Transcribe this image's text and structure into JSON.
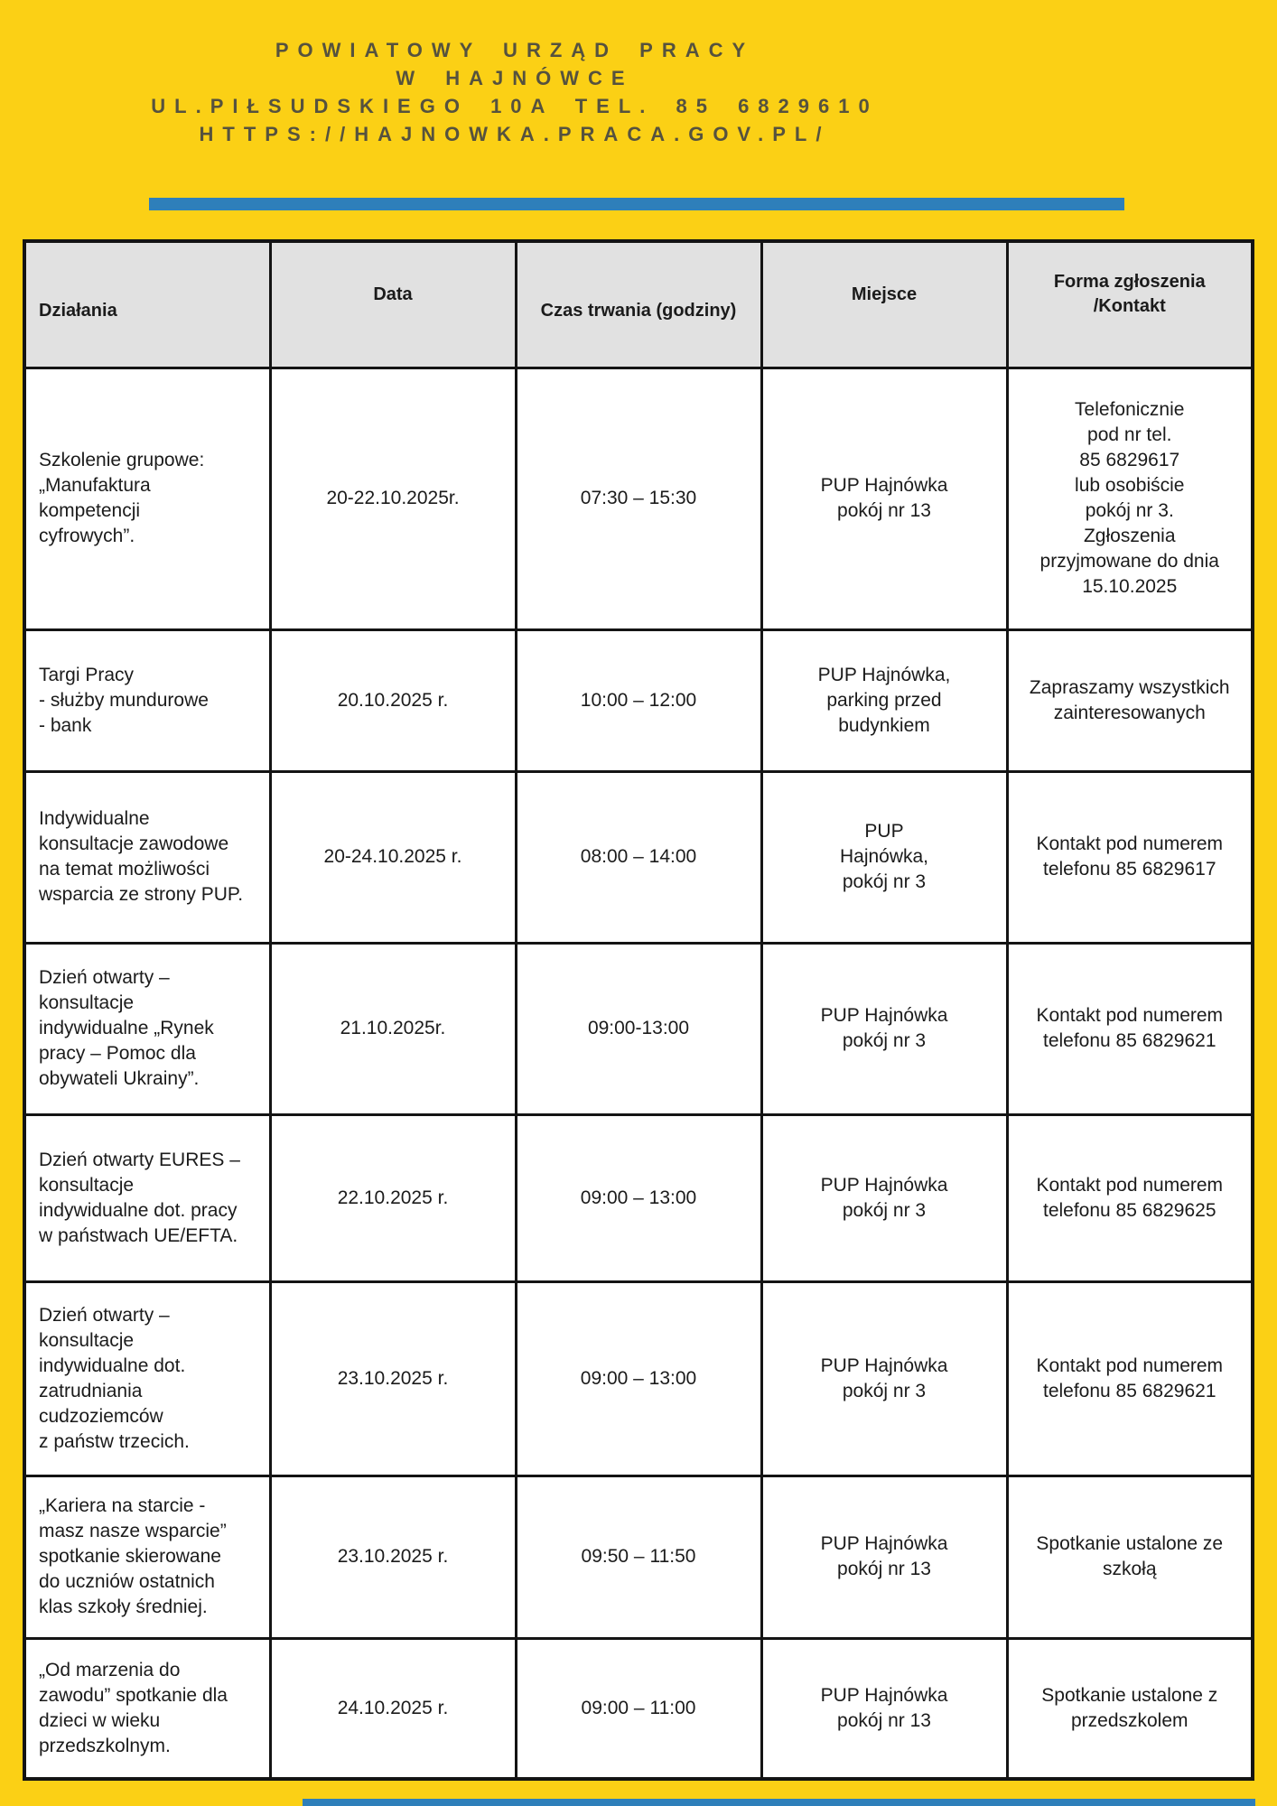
{
  "page": {
    "background_color": "#FBD015",
    "accent_bar_color": "#2E7FBA",
    "header_text_color": "#56523E"
  },
  "header": {
    "line1": "POWIATOWY URZĄD PRACY",
    "line2": "W HAJNÓWCE",
    "line3": "UL.PIŁSUDSKIEGO 10A TEL. 85 6829610",
    "line4": "HTTPS://HAJNOWKA.PRACA.GOV.PL/"
  },
  "table": {
    "columns": [
      "Działania",
      "Data",
      "Czas trwania (godziny)",
      "Miejsce",
      "Forma zgłoszenia\n/Kontakt"
    ],
    "rows": [
      {
        "activity": "Szkolenie grupowe:\n„Manufaktura\nkompetencji\ncyfrowych”.",
        "date": "20-22.10.2025r.",
        "time": "07:30 – 15:30",
        "place": "PUP Hajnówka\npokój nr 13",
        "contact": "Telefonicznie\npod nr tel.\n85 6829617\nlub osobiście\npokój nr 3.\nZgłoszenia\nprzyjmowane do dnia\n15.10.2025"
      },
      {
        "activity": "Targi Pracy\n- służby mundurowe\n- bank",
        "date": "20.10.2025 r.",
        "time": "10:00 – 12:00",
        "place": "PUP Hajnówka,\nparking przed\nbudynkiem",
        "contact": "Zapraszamy wszystkich\nzainteresowanych"
      },
      {
        "activity": "Indywidualne\nkonsultacje zawodowe\nna temat możliwości\nwsparcia ze strony PUP.",
        "date": "20-24.10.2025 r.",
        "time": "08:00 – 14:00",
        "place": "PUP\nHajnówka,\npokój nr 3",
        "contact": "Kontakt pod numerem\ntelefonu 85 6829617"
      },
      {
        "activity": "Dzień otwarty –\nkonsultacje\nindywidualne „Rynek\npracy – Pomoc dla\nobywateli Ukrainy”.",
        "date": "21.10.2025r.",
        "time": "09:00-13:00",
        "place": "PUP Hajnówka\npokój nr 3",
        "contact": "Kontakt pod numerem\ntelefonu 85 6829621"
      },
      {
        "activity": "Dzień otwarty EURES –\nkonsultacje\nindywidualne dot. pracy\nw państwach UE/EFTA.",
        "date": "22.10.2025 r.",
        "time": "09:00 – 13:00",
        "place": "PUP Hajnówka\npokój nr 3",
        "contact": "Kontakt pod numerem\ntelefonu 85 6829625"
      },
      {
        "activity": "Dzień otwarty –\nkonsultacje\nindywidualne dot.\nzatrudniania\ncudzoziemców\nz państw trzecich.",
        "date": "23.10.2025 r.",
        "time": "09:00 – 13:00",
        "place": "PUP Hajnówka\npokój nr 3",
        "contact": "Kontakt pod numerem\ntelefonu 85 6829621"
      },
      {
        "activity": "„Kariera na starcie -\nmasz nasze wsparcie”\nspotkanie skierowane\ndo uczniów ostatnich\nklas szkoły średniej.",
        "date": "23.10.2025 r.",
        "time": "09:50 – 11:50",
        "place": "PUP Hajnówka\npokój nr 13",
        "contact": "Spotkanie ustalone ze\nszkołą"
      },
      {
        "activity": "„Od marzenia do\nzawodu” spotkanie dla\ndzieci w wieku\nprzedszkolnym.",
        "date": "24.10.2025 r.",
        "time": "09:00 – 11:00",
        "place": "PUP Hajnówka\npokój nr 13",
        "contact": "Spotkanie ustalone z\nprzedszkolem"
      }
    ]
  }
}
